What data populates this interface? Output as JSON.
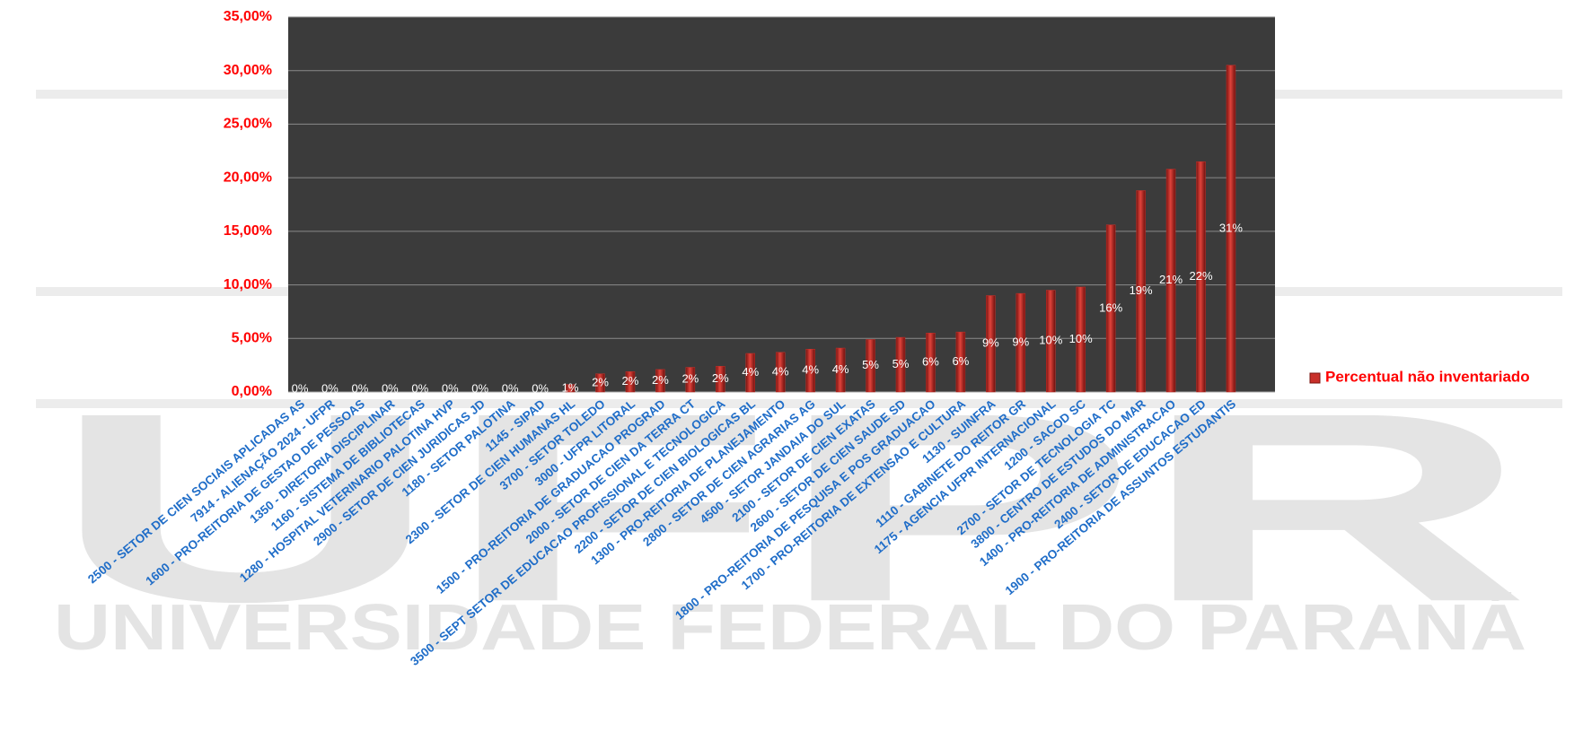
{
  "watermark": {
    "logo": "UFPR",
    "name": "UNIVERSIDADE FEDERAL DO PARANÁ"
  },
  "chart_data": {
    "type": "bar",
    "categories": [
      "2500 - SETOR DE CIEN SOCIAIS APLICADAS AS",
      "7914 - ALIENAÇÃO 2024 - UFPR",
      "1600 - PRO-REITORIA DE GESTAO DE PESSOAS",
      "1350 - DIRETORIA DISCIPLINAR",
      "1160 - SISTEMA DE BIBLIOTECAS",
      "1280 - HOSPITAL VETERINARIO PALOTINA HVP",
      "2900 - SETOR DE CIEN JURIDICAS JD",
      "1180 - SETOR PALOTINA",
      "1145 - SIPAD",
      "2300 - SETOR DE CIEN HUMANAS HL",
      "3700 - SETOR TOLEDO",
      "3000 - UFPR LITORAL",
      "1500 - PRO-REITORIA DE GRADUACAO PROGRAD",
      "2000 - SETOR DE CIEN DA TERRA CT",
      "3500 - SEPT SETOR DE EDUCACAO PROFISSIONAL E TECNOLOGICA",
      "2200 - SETOR DE CIEN BIOLOGICAS BL",
      "1300 - PRO-REITORIA DE PLANEJAMENTO",
      "2800 - SETOR DE CIEN AGRARIAS AG",
      "4500 - SETOR JANDAIA DO SUL",
      "2100 - SETOR DE CIEN EXATAS",
      "2600 - SETOR DE CIEN  SAUDE SD",
      "1800 - PRO-REITORIA DE PESQUISA E POS GRADUACAO",
      "1700 - PRO-REITORIA DE EXTENSAO E CULTURA",
      "1130 - SUINFRA",
      "1110 - GABINETE DO REITOR GR",
      "1175 - AGENCIA UFPR INTERNACIONAL",
      "1200 - SACOD SC",
      "2700 - SETOR DE TECNOLOGIA TC",
      "3800 - CENTRO DE ESTUDOS DO MAR",
      "1400 - PRO-REITORIA DE ADMINISTRACAO",
      "2400 - SETOR DE EDUCACAO ED",
      "1900 - PRO-REITORIA DE ASSUNTOS ESTUDANTIS"
    ],
    "series": [
      {
        "name": "Percentual não inventariado",
        "color": "#c8302a",
        "values": [
          0,
          0,
          0,
          0,
          0,
          0,
          0,
          0,
          0,
          0.7,
          1.7,
          1.9,
          2.1,
          2.3,
          2.4,
          3.6,
          3.7,
          4.0,
          4.1,
          4.9,
          5.1,
          5.5,
          5.6,
          9.0,
          9.2,
          9.5,
          9.8,
          15.6,
          18.8,
          20.8,
          21.5,
          30.5
        ],
        "value_labels": [
          "0%",
          "0%",
          "0%",
          "0%",
          "0%",
          "0%",
          "0%",
          "0%",
          "0%",
          "1%",
          "2%",
          "2%",
          "2%",
          "2%",
          "2%",
          "4%",
          "4%",
          "4%",
          "4%",
          "5%",
          "5%",
          "6%",
          "6%",
          "9%",
          "9%",
          "10%",
          "10%",
          "16%",
          "19%",
          "21%",
          "22%",
          "31%"
        ]
      }
    ],
    "ylim": [
      0,
      35
    ],
    "yticks": [
      {
        "value": 0,
        "label": "0,00%"
      },
      {
        "value": 5,
        "label": "5,00%"
      },
      {
        "value": 10,
        "label": "10,00%"
      },
      {
        "value": 15,
        "label": "15,00%"
      },
      {
        "value": 20,
        "label": "20,00%"
      },
      {
        "value": 25,
        "label": "25,00%"
      },
      {
        "value": 30,
        "label": "30,00%"
      },
      {
        "value": 35,
        "label": "35,00%"
      }
    ],
    "grid": true,
    "legend": "right",
    "plot_background": "#3b3b3b"
  }
}
